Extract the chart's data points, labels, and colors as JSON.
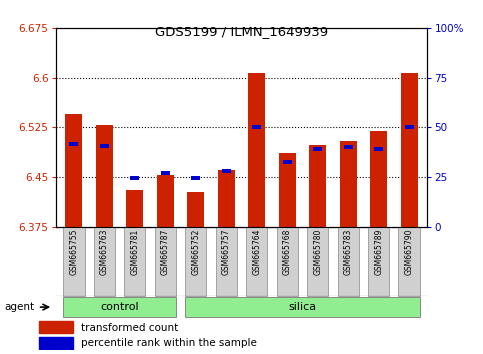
{
  "title": "GDS5199 / ILMN_1649939",
  "samples": [
    "GSM665755",
    "GSM665763",
    "GSM665781",
    "GSM665787",
    "GSM665752",
    "GSM665757",
    "GSM665764",
    "GSM665768",
    "GSM665780",
    "GSM665783",
    "GSM665789",
    "GSM665790"
  ],
  "groups": [
    "control",
    "control",
    "control",
    "control",
    "silica",
    "silica",
    "silica",
    "silica",
    "silica",
    "silica",
    "silica",
    "silica"
  ],
  "red_values": [
    6.545,
    6.528,
    6.43,
    6.453,
    6.427,
    6.46,
    6.607,
    6.487,
    6.498,
    6.505,
    6.52,
    6.608
  ],
  "blue_values": [
    6.5,
    6.497,
    6.448,
    6.456,
    6.449,
    6.459,
    6.525,
    6.473,
    6.492,
    6.495,
    6.492,
    6.525
  ],
  "ylim_left": [
    6.375,
    6.675
  ],
  "ylim_right": [
    0,
    100
  ],
  "yticks_left": [
    6.375,
    6.45,
    6.525,
    6.6,
    6.675
  ],
  "yticks_right": [
    0,
    25,
    50,
    75,
    100
  ],
  "ytick_labels_left": [
    "6.375",
    "6.45",
    "6.525",
    "6.6",
    "6.675"
  ],
  "ytick_labels_right": [
    "0",
    "25",
    "50",
    "75",
    "100%"
  ],
  "red_color": "#cc2200",
  "blue_color": "#0000cc",
  "bar_width": 0.55,
  "baseline": 6.375,
  "bg_color": "#ffffff",
  "green_color": "#90ee90",
  "gray_box_color": "#d0d0d0",
  "legend_items": [
    "transformed count",
    "percentile rank within the sample"
  ],
  "agent_label": "agent"
}
